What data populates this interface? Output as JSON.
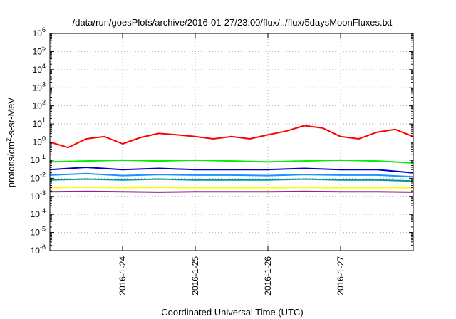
{
  "chart_data": {
    "type": "line",
    "title": "/data/run/goesPlots/archive/2016-01-27/23:00/flux/../flux/5daysMoonFluxes.txt",
    "xlabel": "Coordinated Universal Time (UTC)",
    "ylabel": {
      "prefix": "protons/cm",
      "sup": "2",
      "suffix": "-s-sr-MeV"
    },
    "x_range": [
      "2016-01-23",
      "2016-01-28"
    ],
    "x_ticks": [
      "2016-1-24",
      "2016-1-25",
      "2016-1-26",
      "2016-1-27"
    ],
    "y_scale": "log",
    "y_range": [
      1e-06,
      1000000.0
    ],
    "y_ticks": [
      {
        "base": "10",
        "exp": "6"
      },
      {
        "base": "10",
        "exp": "5"
      },
      {
        "base": "10",
        "exp": "4"
      },
      {
        "base": "10",
        "exp": "3"
      },
      {
        "base": "10",
        "exp": "2"
      },
      {
        "base": "10",
        "exp": "1"
      },
      {
        "base": "10",
        "exp": "0"
      },
      {
        "base": "10",
        "exp": "-1"
      },
      {
        "base": "10",
        "exp": "-2"
      },
      {
        "base": "10",
        "exp": "-3"
      },
      {
        "base": "10",
        "exp": "-4"
      },
      {
        "base": "10",
        "exp": "-5"
      },
      {
        "base": "10",
        "exp": "-6"
      }
    ],
    "grid": true,
    "legend": "none",
    "series": [
      {
        "color": "#ff0000",
        "x": [
          "2016-01-23",
          "2016-01-23.25",
          "2016-01-23.5",
          "2016-01-23.75",
          "2016-01-24",
          "2016-01-24.25",
          "2016-01-24.5",
          "2016-01-24.75",
          "2016-01-25",
          "2016-01-25.25",
          "2016-01-25.5",
          "2016-01-25.75",
          "2016-01-26",
          "2016-01-26.25",
          "2016-01-26.5",
          "2016-01-26.75",
          "2016-01-27",
          "2016-01-27.25",
          "2016-01-27.5",
          "2016-01-27.75",
          "2016-01-28"
        ],
        "y": [
          1.0,
          0.5,
          1.5,
          2.0,
          0.8,
          1.8,
          3.0,
          2.5,
          2.0,
          1.5,
          2.0,
          1.5,
          2.5,
          4.0,
          8.0,
          6.0,
          2.0,
          1.5,
          3.5,
          5.0,
          2.0
        ]
      },
      {
        "color": "#00ee00",
        "x": [
          "2016-01-23",
          "2016-01-23.5",
          "2016-01-24",
          "2016-01-24.5",
          "2016-01-25",
          "2016-01-25.5",
          "2016-01-26",
          "2016-01-26.5",
          "2016-01-27",
          "2016-01-27.5",
          "2016-01-28"
        ],
        "y": [
          0.08,
          0.09,
          0.1,
          0.09,
          0.1,
          0.09,
          0.08,
          0.09,
          0.1,
          0.09,
          0.07
        ]
      },
      {
        "color": "#0000cc",
        "x": [
          "2016-01-23",
          "2016-01-23.5",
          "2016-01-24",
          "2016-01-24.5",
          "2016-01-25",
          "2016-01-25.5",
          "2016-01-26",
          "2016-01-26.5",
          "2016-01-27",
          "2016-01-27.5",
          "2016-01-28"
        ],
        "y": [
          0.03,
          0.04,
          0.03,
          0.035,
          0.03,
          0.03,
          0.03,
          0.035,
          0.03,
          0.03,
          0.02
        ]
      },
      {
        "color": "#1e90ff",
        "x": [
          "2016-01-23",
          "2016-01-23.5",
          "2016-01-24",
          "2016-01-24.5",
          "2016-01-25",
          "2016-01-25.5",
          "2016-01-26",
          "2016-01-26.5",
          "2016-01-27",
          "2016-01-27.5",
          "2016-01-28"
        ],
        "y": [
          0.015,
          0.018,
          0.014,
          0.016,
          0.015,
          0.015,
          0.014,
          0.016,
          0.015,
          0.015,
          0.012
        ]
      },
      {
        "color": "#009999",
        "x": [
          "2016-01-23",
          "2016-01-23.5",
          "2016-01-24",
          "2016-01-24.5",
          "2016-01-25",
          "2016-01-25.5",
          "2016-01-26",
          "2016-01-26.5",
          "2016-01-27",
          "2016-01-27.5",
          "2016-01-28"
        ],
        "y": [
          0.008,
          0.009,
          0.008,
          0.009,
          0.008,
          0.008,
          0.008,
          0.009,
          0.008,
          0.008,
          0.007
        ]
      },
      {
        "color": "#ffff00",
        "x": [
          "2016-01-23",
          "2016-01-23.5",
          "2016-01-24",
          "2016-01-24.5",
          "2016-01-25",
          "2016-01-25.5",
          "2016-01-26",
          "2016-01-26.5",
          "2016-01-27",
          "2016-01-27.5",
          "2016-01-28"
        ],
        "y": [
          0.003,
          0.0032,
          0.003,
          0.0031,
          0.003,
          0.003,
          0.003,
          0.0031,
          0.003,
          0.003,
          0.003
        ]
      },
      {
        "color": "#8b2a8b",
        "x": [
          "2016-01-23",
          "2016-01-23.5",
          "2016-01-24",
          "2016-01-24.5",
          "2016-01-25",
          "2016-01-25.5",
          "2016-01-26",
          "2016-01-26.5",
          "2016-01-27",
          "2016-01-27.5",
          "2016-01-28"
        ],
        "y": [
          0.0018,
          0.0019,
          0.0018,
          0.0017,
          0.0018,
          0.0018,
          0.0018,
          0.0019,
          0.0018,
          0.0018,
          0.0017
        ]
      }
    ]
  }
}
